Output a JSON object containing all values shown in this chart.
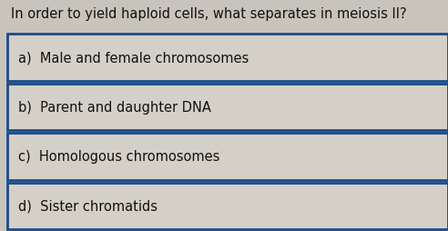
{
  "question": "In order to yield haploid cells, what separates in meiosis II?",
  "options": [
    "a)  Male and female chromosomes",
    "b)  Parent and daughter DNA",
    "c)  Homologous chromosomes",
    "d)  Sister chromatids"
  ],
  "bg_color": "#c8c4bc",
  "box_bg_color": "#d4d0c8",
  "border_color": "#1a4a8a",
  "text_color": "#111111",
  "question_color": "#111111",
  "question_fontsize": 10.5,
  "option_fontsize": 10.5,
  "figure_width": 4.92,
  "figure_height": 2.55,
  "dpi": 100
}
